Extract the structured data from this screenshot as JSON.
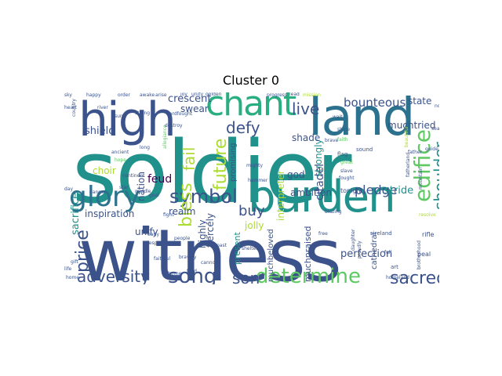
{
  "chart_data": {
    "type": "wordcloud",
    "title": "Cluster 0",
    "palette": "viridis",
    "words": [
      {
        "text": "soldier",
        "weight": 1.0,
        "color": "#21918c"
      },
      {
        "text": "witness",
        "weight": 0.98,
        "color": "#3b528b"
      },
      {
        "text": "land",
        "weight": 0.62,
        "color": "#2c728e"
      },
      {
        "text": "burden",
        "weight": 0.6,
        "color": "#21918c"
      },
      {
        "text": "high",
        "weight": 0.58,
        "color": "#3b528b"
      },
      {
        "text": "chant",
        "weight": 0.5,
        "color": "#28ae80"
      },
      {
        "text": "glory",
        "weight": 0.44,
        "color": "#2c728e"
      },
      {
        "text": "determine",
        "weight": 0.3,
        "color": "#5ec962"
      },
      {
        "text": "edifice",
        "weight": 0.3,
        "color": "#5ec962"
      },
      {
        "text": "symbol",
        "weight": 0.28,
        "color": "#3b528b"
      },
      {
        "text": "adversity",
        "weight": 0.26,
        "color": "#3b528b"
      },
      {
        "text": "song",
        "weight": 0.26,
        "color": "#3b528b"
      },
      {
        "text": "price",
        "weight": 0.26,
        "color": "#3b528b"
      },
      {
        "text": "shoulder",
        "weight": 0.24,
        "color": "#21918c"
      },
      {
        "text": "sacred",
        "weight": 0.24,
        "color": "#3b528b"
      },
      {
        "text": "live",
        "weight": 0.22,
        "color": "#3b528b"
      },
      {
        "text": "defy",
        "weight": 0.22,
        "color": "#3b528b"
      },
      {
        "text": "bless",
        "weight": 0.22,
        "color": "#addc30"
      },
      {
        "text": "fail",
        "weight": 0.22,
        "color": "#addc30"
      },
      {
        "text": "future",
        "weight": 0.22,
        "color": "#addc30"
      },
      {
        "text": "son",
        "weight": 0.2,
        "color": "#3b528b"
      },
      {
        "text": "buy",
        "weight": 0.2,
        "color": "#3b528b"
      },
      {
        "text": "bounteous",
        "weight": 0.16,
        "color": "#3b528b"
      },
      {
        "text": "sacrifice",
        "weight": 0.14,
        "color": "#21918c"
      },
      {
        "text": "shield",
        "weight": 0.14,
        "color": "#3b528b"
      },
      {
        "text": "pledge",
        "weight": 0.14,
        "color": "#3b528b"
      },
      {
        "text": "interpreter",
        "weight": 0.14,
        "color": "#addc30"
      },
      {
        "text": "citadel",
        "weight": 0.14,
        "color": "#3b528b"
      },
      {
        "text": "perfection",
        "weight": 0.12,
        "color": "#3b528b"
      },
      {
        "text": "asiduous",
        "weight": 0.12,
        "color": "#addc30"
      },
      {
        "text": "crescent",
        "weight": 0.12,
        "color": "#3b528b"
      },
      {
        "text": "state",
        "weight": 0.1,
        "color": "#3b528b"
      },
      {
        "text": "muchtried",
        "weight": 0.1,
        "color": "#3b528b"
      },
      {
        "text": "stride",
        "weight": 0.1,
        "color": "#21918c"
      },
      {
        "text": "ambition",
        "weight": 0.1,
        "color": "#3b528b"
      },
      {
        "text": "realm",
        "weight": 0.1,
        "color": "#3b528b"
      },
      {
        "text": "inspiration",
        "weight": 0.1,
        "color": "#3b528b"
      },
      {
        "text": "nation",
        "weight": 0.1,
        "color": "#3b528b"
      },
      {
        "text": "feud",
        "weight": 0.1,
        "color": "#440154"
      },
      {
        "text": "choir",
        "weight": 0.1,
        "color": "#addc30"
      },
      {
        "text": "swear",
        "weight": 0.1,
        "color": "#3b528b"
      },
      {
        "text": "strongly",
        "weight": 0.1,
        "color": "#21918c"
      },
      {
        "text": "shade",
        "weight": 0.1,
        "color": "#3b528b"
      },
      {
        "text": "god",
        "weight": 0.1,
        "color": "#3b528b"
      },
      {
        "text": "unify",
        "weight": 0.1,
        "color": "#3b528b"
      },
      {
        "text": "jolly",
        "weight": 0.1,
        "color": "#addc30"
      },
      {
        "text": "fiercely",
        "weight": 0.1,
        "color": "#3b528b"
      },
      {
        "text": "highly",
        "weight": 0.1,
        "color": "#3b528b"
      },
      {
        "text": "present",
        "weight": 0.1,
        "color": "#21918c"
      },
      {
        "text": "muchbeloved",
        "weight": 0.1,
        "color": "#3b528b"
      },
      {
        "text": "muchpraised",
        "weight": 0.1,
        "color": "#3b528b"
      },
      {
        "text": "cathedral",
        "weight": 0.08,
        "color": "#3b528b"
      },
      {
        "text": "promising",
        "weight": 0.08,
        "color": "#3b528b"
      },
      {
        "text": "tonight",
        "weight": 0.05,
        "color": "#3b528b"
      },
      {
        "text": "peal",
        "weight": 0.05,
        "color": "#3b528b"
      },
      {
        "text": "rifle",
        "weight": 0.05,
        "color": "#3b528b"
      },
      {
        "text": "sireland",
        "weight": 0.05,
        "color": "#3b528b"
      },
      {
        "text": "art",
        "weight": 0.05,
        "color": "#3b528b"
      },
      {
        "text": "homeland",
        "weight": 0.04,
        "color": "#3b528b"
      },
      {
        "text": "fatherland",
        "weight": 0.04,
        "color": "#3b528b"
      },
      {
        "text": "brotherhood",
        "weight": 0.04,
        "color": "#3b528b"
      },
      {
        "text": "flag",
        "weight": 0.05,
        "color": "#3b528b"
      },
      {
        "text": "sound",
        "weight": 0.05,
        "color": "#3b528b"
      },
      {
        "text": "faith",
        "weight": 0.05,
        "color": "#5ec962"
      },
      {
        "text": "great",
        "weight": 0.05,
        "color": "#5ec962"
      },
      {
        "text": "free",
        "weight": 0.05,
        "color": "#3b528b"
      },
      {
        "text": "proudly",
        "weight": 0.05,
        "color": "#3b528b"
      },
      {
        "text": "full",
        "weight": 0.05,
        "color": "#3b528b"
      },
      {
        "text": "daughter",
        "weight": 0.04,
        "color": "#3b528b"
      },
      {
        "text": "fought",
        "weight": 0.04,
        "color": "#3b528b"
      },
      {
        "text": "people",
        "weight": 0.05,
        "color": "#3b528b"
      },
      {
        "text": "bravely",
        "weight": 0.05,
        "color": "#3b528b"
      },
      {
        "text": "past",
        "weight": 0.05,
        "color": "#3b528b"
      },
      {
        "text": "shelter",
        "weight": 0.05,
        "color": "#3b528b"
      },
      {
        "text": "cannon",
        "weight": 0.05,
        "color": "#3b528b"
      },
      {
        "text": "field",
        "weight": 0.05,
        "color": "#3b528b"
      },
      {
        "text": "borne",
        "weight": 0.05,
        "color": "#3b528b"
      },
      {
        "text": "fight",
        "weight": 0.05,
        "color": "#3b528b"
      },
      {
        "text": "goal",
        "weight": 0.05,
        "color": "#3b528b"
      },
      {
        "text": "early",
        "weight": 0.05,
        "color": "#3b528b"
      },
      {
        "text": "despot",
        "weight": 0.05,
        "color": "#3b528b"
      },
      {
        "text": "faithful",
        "weight": 0.05,
        "color": "#3b528b"
      },
      {
        "text": "star",
        "weight": 0.05,
        "color": "#3b528b"
      },
      {
        "text": "continent",
        "weight": 0.05,
        "color": "#3b528b"
      },
      {
        "text": "middle",
        "weight": 0.05,
        "color": "#3b528b"
      },
      {
        "text": "danger",
        "weight": 0.05,
        "color": "#3b528b"
      },
      {
        "text": "long",
        "weight": 0.05,
        "color": "#3b528b"
      },
      {
        "text": "ancient",
        "weight": 0.05,
        "color": "#3b528b"
      },
      {
        "text": "hope",
        "weight": 0.05,
        "color": "#5ec962"
      },
      {
        "text": "life",
        "weight": 0.05,
        "color": "#3b528b"
      },
      {
        "text": "gift",
        "weight": 0.05,
        "color": "#3b528b"
      },
      {
        "text": "home",
        "weight": 0.05,
        "color": "#3b528b"
      },
      {
        "text": "day",
        "weight": 0.05,
        "color": "#3b528b"
      },
      {
        "text": "happy",
        "weight": 0.05,
        "color": "#3b528b"
      },
      {
        "text": "order",
        "weight": 0.05,
        "color": "#3b528b"
      },
      {
        "text": "progress",
        "weight": 0.05,
        "color": "#3b528b"
      },
      {
        "text": "lead",
        "weight": 0.05,
        "color": "#3b528b"
      },
      {
        "text": "mission",
        "weight": 0.05,
        "color": "#addc30"
      },
      {
        "text": "hardfought",
        "weight": 0.05,
        "color": "#3b528b"
      },
      {
        "text": "allegiance",
        "weight": 0.05,
        "color": "#5ec962"
      },
      {
        "text": "mighty",
        "weight": 0.05,
        "color": "#3b528b"
      },
      {
        "text": "hammer",
        "weight": 0.05,
        "color": "#3b528b"
      },
      {
        "text": "death",
        "weight": 0.05,
        "color": "#3b528b"
      },
      {
        "text": "brave",
        "weight": 0.05,
        "color": "#3b528b"
      },
      {
        "text": "slave",
        "weight": 0.05,
        "color": "#3b528b"
      },
      {
        "text": "shine",
        "weight": 0.05,
        "color": "#3b528b"
      },
      {
        "text": "beautiful",
        "weight": 0.05,
        "color": "#addc30"
      },
      {
        "text": "mountain",
        "weight": 0.05,
        "color": "#3b528b"
      },
      {
        "text": "resolve",
        "weight": 0.05,
        "color": "#addc30"
      },
      {
        "text": "blazing",
        "weight": 0.05,
        "color": "#3b528b"
      },
      {
        "text": "wait",
        "weight": 0.05,
        "color": "#3b528b"
      },
      {
        "text": "destroy",
        "weight": 0.05,
        "color": "#3b528b"
      },
      {
        "text": "guide",
        "weight": 0.05,
        "color": "#3b528b"
      },
      {
        "text": "father",
        "weight": 0.05,
        "color": "#3b528b"
      },
      {
        "text": "river",
        "weight": 0.05,
        "color": "#3b528b"
      },
      {
        "text": "heart",
        "weight": 0.05,
        "color": "#3b528b"
      },
      {
        "text": "country",
        "weight": 0.05,
        "color": "#3b528b"
      },
      {
        "text": "strong",
        "weight": 0.05,
        "color": "#3b528b"
      },
      {
        "text": "sun",
        "weight": 0.05,
        "color": "#3b528b"
      },
      {
        "text": "sea",
        "weight": 0.05,
        "color": "#3b528b"
      },
      {
        "text": "nod",
        "weight": 0.05,
        "color": "#3b528b"
      },
      {
        "text": "sky",
        "weight": 0.05,
        "color": "#3b528b"
      },
      {
        "text": "arise",
        "weight": 0.05,
        "color": "#3b528b"
      },
      {
        "text": "awake",
        "weight": 0.05,
        "color": "#3b528b"
      },
      {
        "text": "joy",
        "weight": 0.05,
        "color": "#3b528b"
      },
      {
        "text": "unity",
        "weight": 0.05,
        "color": "#3b528b"
      },
      {
        "text": "golden",
        "weight": 0.05,
        "color": "#3b528b"
      }
    ]
  }
}
